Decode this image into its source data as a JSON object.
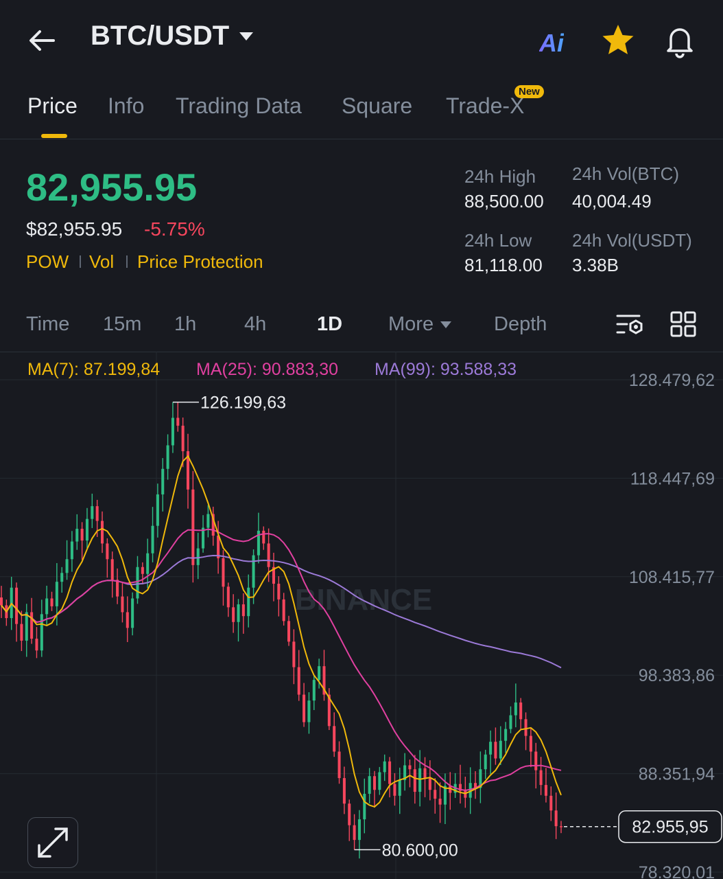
{
  "header": {
    "pair": "BTC/USDT",
    "ai_label": "Ai",
    "icons": [
      "back-arrow-icon",
      "chevron-down-icon",
      "star-icon",
      "bell-icon"
    ]
  },
  "tabs": [
    {
      "label": "Price",
      "active": true
    },
    {
      "label": "Info"
    },
    {
      "label": "Trading Data"
    },
    {
      "label": "Square"
    },
    {
      "label": "Trade-X",
      "badge": "New"
    }
  ],
  "ticker": {
    "last_price": "82,955.95",
    "usd_price": "$82,955.95",
    "change": "-5.75%",
    "tags": [
      "POW",
      "Vol",
      "Price Protection"
    ],
    "stats": [
      {
        "label": "24h High",
        "value": "88,500.00"
      },
      {
        "label": "24h Vol(BTC)",
        "value": "40,004.49"
      },
      {
        "label": "24h Low",
        "value": "81,118.00"
      },
      {
        "label": "24h Vol(USDT)",
        "value": "3.38B"
      }
    ]
  },
  "intervals": {
    "items": [
      "Time",
      "15m",
      "1h",
      "4h",
      "1D",
      "More",
      "Depth"
    ],
    "active": "1D"
  },
  "ma_legend": [
    {
      "label": "MA(7): 87.199,84",
      "color": "#f0b90b"
    },
    {
      "label": "MA(25): 90.883,30",
      "color": "#e040a0"
    },
    {
      "label": "MA(99): 93.588,33",
      "color": "#9c7ad8"
    }
  ],
  "chart_data": {
    "type": "candlestick",
    "interval": "1D",
    "y_ticks": [
      "128.479,62",
      "118.447,69",
      "108.415,77",
      "98.383,86",
      "88.351,94",
      "78.320,01"
    ],
    "y_tick_values": [
      128479.62,
      118447.69,
      108415.77,
      98383.86,
      88351.94,
      78320.01
    ],
    "high_label": "126.199,63",
    "high_value": 126199.63,
    "low_label": "80.600,00",
    "low_value": 80600.0,
    "last_label": "82.955,95",
    "last_value": 82955.95,
    "watermark": "BINANCE",
    "colors": {
      "up": "#2ebd85",
      "down": "#f6465d",
      "ma7": "#f0b90b",
      "ma25": "#e040a0",
      "ma99": "#9c7ad8"
    },
    "closes": [
      105500,
      104200,
      107300,
      103600,
      101900,
      104800,
      102100,
      100900,
      104600,
      106200,
      105400,
      107900,
      108800,
      110200,
      112000,
      113300,
      112100,
      114300,
      115600,
      114100,
      111800,
      110200,
      108100,
      106400,
      104800,
      103200,
      106200,
      109400,
      108700,
      110800,
      113600,
      116800,
      119400,
      121800,
      124600,
      123800,
      121200,
      117300,
      109600,
      111300,
      113400,
      114800,
      112600,
      110300,
      107400,
      105300,
      103800,
      105600,
      104400,
      107300,
      110600,
      113100,
      111800,
      109400,
      107700,
      106100,
      103900,
      101800,
      99200,
      96400,
      93600,
      95800,
      97900,
      99300,
      96400,
      93200,
      90600,
      87900,
      85300,
      83100,
      81600,
      83700,
      86300,
      88100,
      86700,
      88500,
      89600,
      87300,
      86100,
      87700,
      89200,
      88800,
      86500,
      88900,
      87900,
      86700,
      85800,
      85200,
      87100,
      86400,
      87300,
      86600,
      85900,
      87400,
      86900,
      88800,
      90300,
      91600,
      89900,
      91700,
      92900,
      94300,
      95600,
      93900,
      92200,
      90600,
      88700,
      87200,
      86100,
      84600,
      83000,
      82956
    ]
  }
}
